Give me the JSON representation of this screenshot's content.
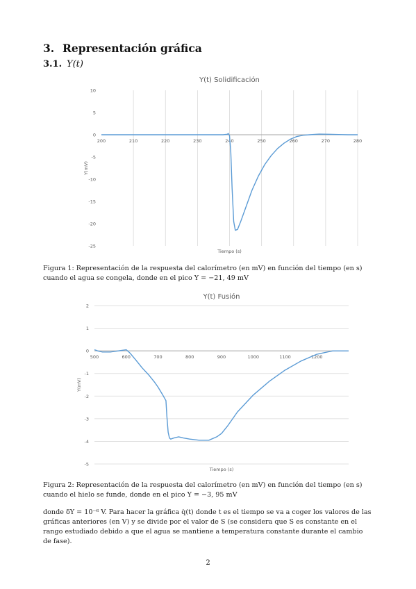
{
  "section": {
    "number": "3.",
    "title": "Representación gráfica"
  },
  "subsection": {
    "number": "3.1.",
    "title": "Y(t)"
  },
  "figure1": {
    "caption": "Figura 1: Representación de la respuesta del calorímetro (en mV) en función del tiempo (en s) cuando el agua se congela, donde en el pico Y = −21, 49 mV"
  },
  "figure2": {
    "caption": "Figura 2: Representación de la respuesta del calorímetro (en mV) en función del tiempo (en s) cuando el hielo se funde, donde en el pico Y = −3, 95 mV"
  },
  "body_text": "donde δY = 10⁻⁶ V. Para hacer la gráfica q̇(t) donde t es el tiempo se va a coger los valores de las gráficas anteriores (en V) y se divide por el valor de S (se considera que S es constante en el rango estudiado debido a que el agua se mantiene a temperatura constante durante el cambio de fase).",
  "page_number": "2",
  "chart_data": [
    {
      "type": "line",
      "title": "Y(t) Solidificación",
      "xlabel": "Tiempo (s)",
      "ylabel": "Y(mV)",
      "xlim": [
        200,
        280
      ],
      "ylim": [
        -25,
        10
      ],
      "xticks": [
        200,
        210,
        220,
        230,
        240,
        250,
        260,
        270,
        280
      ],
      "xtick_labels": [
        "200",
        "210",
        "220",
        "230",
        "240",
        "250",
        "260",
        "270",
        "280"
      ],
      "yticks": [
        10,
        5,
        0,
        -5,
        -10,
        -15,
        -20,
        -25
      ],
      "ytick_labels": [
        "10",
        "5",
        "0",
        "-5",
        "-10",
        "-15",
        "-20",
        "-25"
      ],
      "grid": "vertical",
      "color": "#5b9bd5",
      "series": [
        {
          "x": [
            200,
            210,
            220,
            230,
            238,
            239.3,
            239.6,
            240,
            240.4,
            240.8,
            241.3,
            241.8,
            242.5,
            243.5,
            245,
            247,
            249,
            251,
            253,
            255,
            257,
            259,
            261,
            263,
            265,
            268,
            271,
            274,
            277,
            280
          ],
          "y": [
            0,
            0,
            0,
            0,
            0,
            0.1,
            0.3,
            -0.2,
            -4,
            -12,
            -19.5,
            -21.49,
            -21.3,
            -19.5,
            -16.5,
            -12.5,
            -9.3,
            -6.7,
            -4.7,
            -3.1,
            -1.9,
            -1,
            -0.4,
            -0.1,
            0,
            0.15,
            0.1,
            0.05,
            0,
            0
          ]
        }
      ]
    },
    {
      "type": "line",
      "title": "Y(t) Fusión",
      "xlabel": "Tiempo (s)",
      "ylabel": "Y(mV)",
      "xlim": [
        500,
        1300
      ],
      "ylim": [
        -5,
        2
      ],
      "xticks": [
        500,
        600,
        700,
        800,
        900,
        1000,
        1100,
        1200
      ],
      "xtick_labels": [
        "500",
        "600",
        "700",
        "800",
        "900",
        "1000",
        "1100",
        "1200"
      ],
      "yticks": [
        2,
        1,
        0,
        -1,
        -2,
        -3,
        -4,
        -5
      ],
      "ytick_labels": [
        "2",
        "1",
        "0",
        "-1",
        "-2",
        "-3",
        "-4",
        "-5"
      ],
      "grid": "horizontal",
      "color": "#5b9bd5",
      "series": [
        {
          "x": [
            500,
            510,
            525,
            550,
            575,
            600,
            612,
            630,
            650,
            670,
            690,
            700,
            715,
            725,
            728,
            732,
            736,
            740,
            750,
            765,
            780,
            800,
            830,
            860,
            885,
            900,
            920,
            950,
            1000,
            1050,
            1100,
            1150,
            1200,
            1250,
            1300
          ],
          "y": [
            0.05,
            0,
            -0.05,
            -0.05,
            0,
            0.05,
            -0.1,
            -0.4,
            -0.75,
            -1.05,
            -1.4,
            -1.6,
            -1.95,
            -2.2,
            -2.9,
            -3.6,
            -3.85,
            -3.9,
            -3.85,
            -3.8,
            -3.85,
            -3.9,
            -3.95,
            -3.95,
            -3.8,
            -3.65,
            -3.3,
            -2.7,
            -1.95,
            -1.35,
            -0.85,
            -0.45,
            -0.15,
            0,
            0
          ]
        }
      ]
    }
  ]
}
